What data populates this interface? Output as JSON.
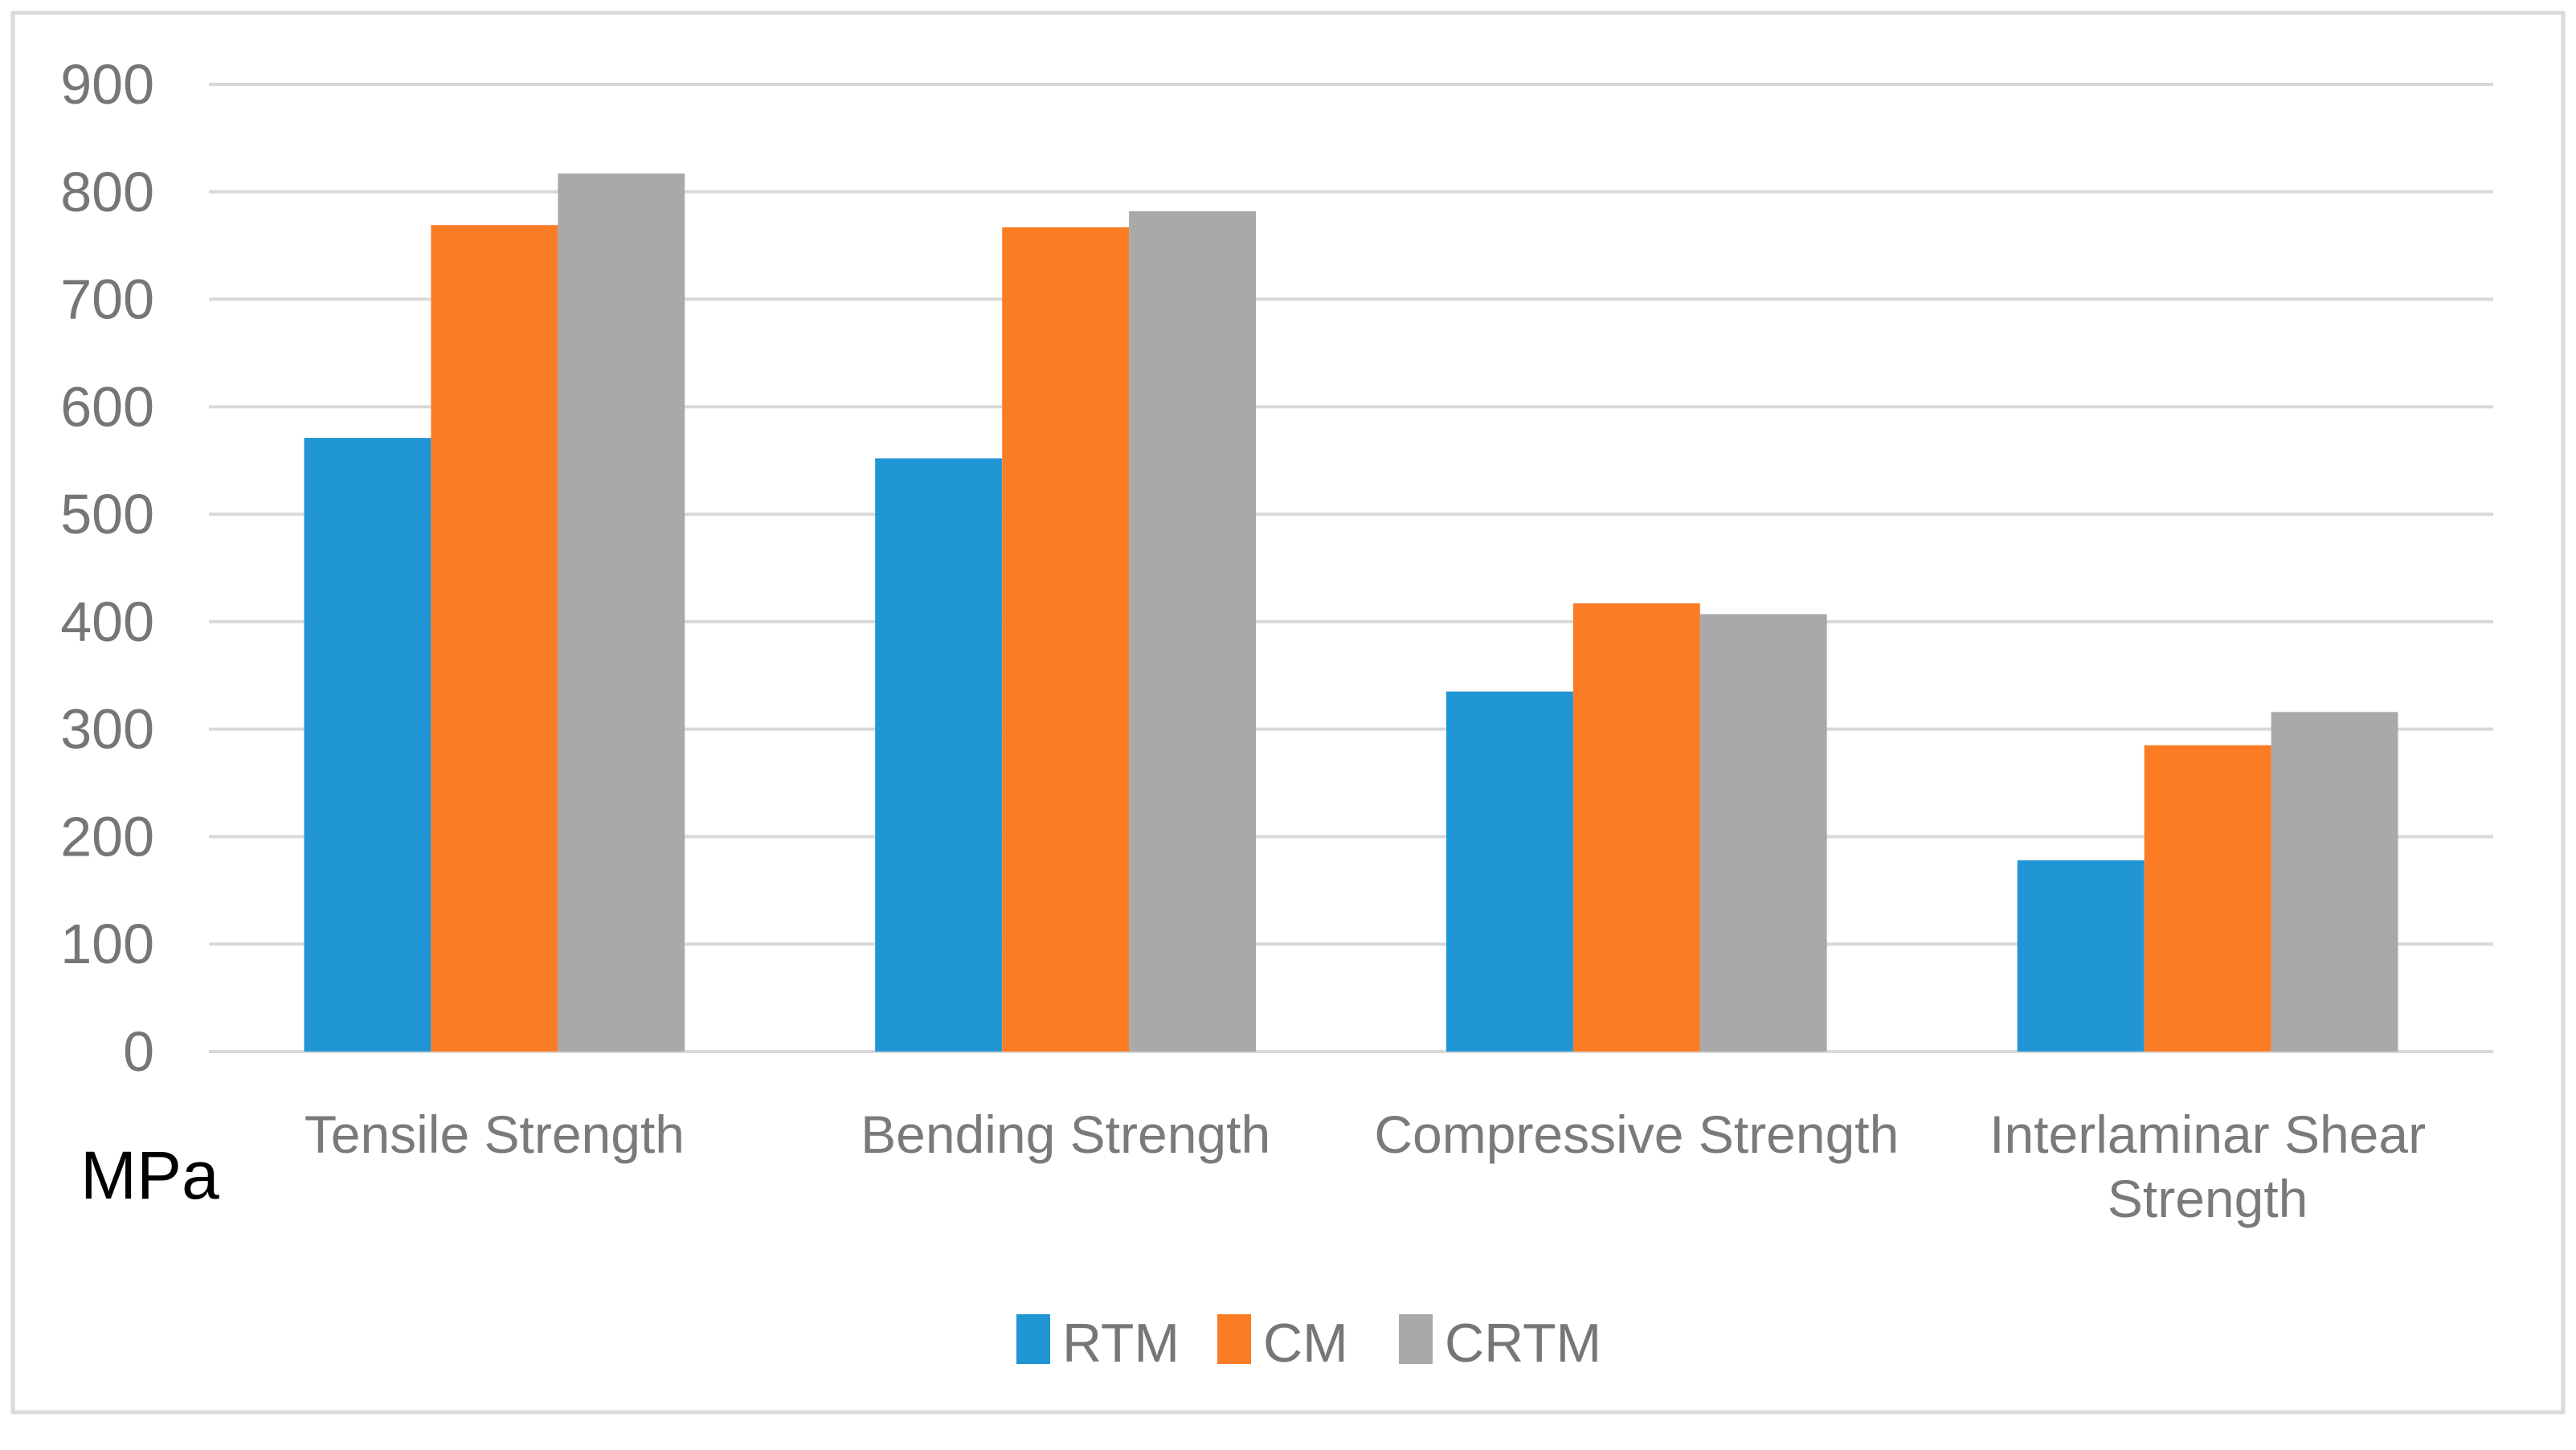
{
  "chart_data": {
    "type": "bar",
    "title": "",
    "categories": [
      "Tensile Strength",
      "Bending Strength",
      "Compressive Strength",
      "Interlaminar Shear Strength"
    ],
    "series": [
      {
        "name": "RTM",
        "color": "#2196D5",
        "values": [
          571,
          552,
          335,
          178
        ]
      },
      {
        "name": "CM",
        "color": "#FB7C24",
        "values": [
          769,
          767,
          417,
          285
        ]
      },
      {
        "name": "CRTM",
        "color": "#A9A9A9",
        "values": [
          817,
          782,
          407,
          316
        ]
      }
    ],
    "xlabel": "",
    "ylabel": "MPa",
    "ylim": [
      0,
      900
    ],
    "yticks": [
      0,
      100,
      200,
      300,
      400,
      500,
      600,
      700,
      800,
      900
    ],
    "grid": true,
    "legend_position": "bottom",
    "legend_items": [
      "RTM",
      "CM",
      "CRTM"
    ]
  },
  "colors": {
    "background": "#FFFFFF",
    "gridline": "#D9D9D9",
    "chart_border": "#DBDBDB",
    "axis_text": "#767676",
    "unit_label_text": "#000000"
  }
}
